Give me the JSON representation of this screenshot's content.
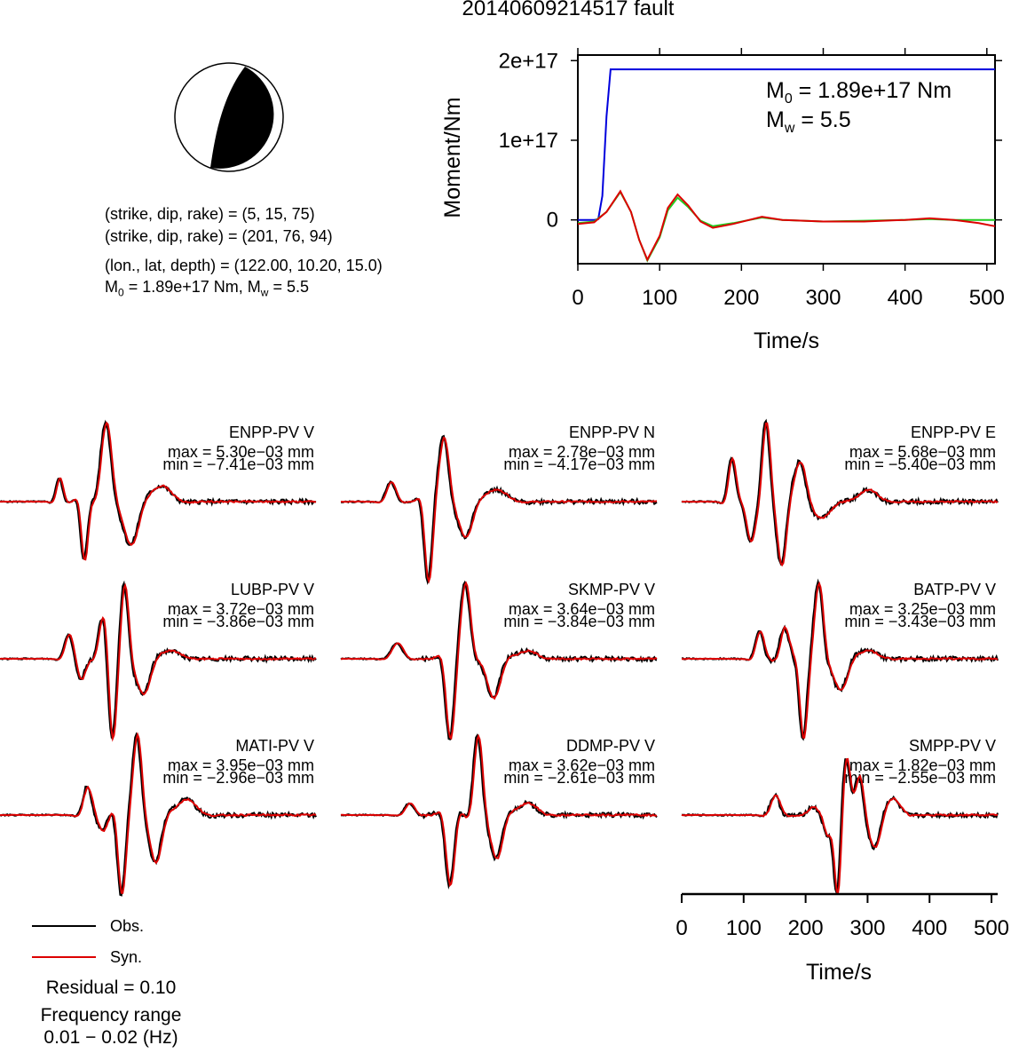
{
  "title": "20140609214517 fault",
  "beachball": {
    "strike_dip_rake_1": "(strike, dip, rake) = (5, 15, 75)",
    "strike_dip_rake_2": "(strike, dip, rake) = (201, 76, 94)",
    "location": "(lon., lat, depth) = (122.00, 10.20, 15.0)",
    "m0_text": "= 1.89e+17 Nm, M",
    "mw_text": "= 5.5"
  },
  "moment_plot": {
    "ylabel": "Moment/Nm",
    "xlabel": "Time/s",
    "m0_label": "= 1.89e+17 Nm",
    "mw_label": "= 5.5",
    "colors": {
      "cumulative": "#0000dd",
      "rate_a": "#22cc22",
      "rate_b": "#dd0000"
    }
  },
  "chart_data": [
    {
      "type": "line",
      "title": "",
      "xlabel": "Time/s",
      "ylabel": "Moment/Nm",
      "xlim": [
        0,
        510
      ],
      "ylim": [
        -55000000000000000,
        207000000000000000
      ],
      "xticks": [
        0,
        100,
        200,
        300,
        400,
        500
      ],
      "yticks": [
        0,
        100000000000000000,
        200000000000000000
      ],
      "ytick_labels": [
        "0",
        "1e+17",
        "2e+17"
      ],
      "series": [
        {
          "color": "#0000dd",
          "x": [
            0,
            20,
            25,
            30,
            35,
            40,
            510
          ],
          "y": [
            0,
            0,
            1000000000000000.0,
            30000000000000000,
            130000000000000000,
            189000000000000000,
            189000000000000000
          ]
        },
        {
          "color": "#22cc22",
          "x": [
            0,
            20,
            35,
            52,
            65,
            75,
            85,
            100,
            110,
            122,
            135,
            150,
            165,
            190,
            225,
            250,
            300,
            350,
            400,
            430,
            460,
            510
          ],
          "y": [
            -4000000000000000,
            -2000000000000000,
            10000000000000000,
            35000000000000000,
            10000000000000000,
            -25000000000000000,
            -51000000000000000,
            -22000000000000000,
            12000000000000000,
            28000000000000000,
            16000000000000000,
            -1000000000000000,
            -8000000000000000,
            -4000000000000000,
            3000000000000000,
            0,
            -2000000000000000,
            -1000000000000000,
            0,
            1000000000000000,
            0,
            0
          ]
        },
        {
          "color": "#dd0000",
          "x": [
            0,
            20,
            35,
            52,
            65,
            75,
            85,
            100,
            110,
            122,
            135,
            150,
            165,
            190,
            225,
            250,
            300,
            350,
            400,
            430,
            460,
            490,
            510
          ],
          "y": [
            -5000000000000000,
            -3000000000000000,
            10000000000000000,
            36000000000000000,
            10000000000000000,
            -25000000000000000,
            -50000000000000000,
            -20000000000000000,
            15000000000000000,
            32000000000000000,
            18000000000000000,
            -2000000000000000,
            -10000000000000000,
            -5000000000000000,
            4000000000000000,
            0,
            -2000000000000000,
            -2000000000000000,
            0,
            2000000000000000,
            0,
            -4000000000000000,
            -8000000000000000
          ]
        }
      ]
    },
    {
      "type": "line",
      "xlabel": "Time/s",
      "xlim": [
        0,
        510
      ],
      "xticks": [
        0,
        100,
        200,
        300,
        400,
        500
      ],
      "legend": {
        "placement": "bottom-left",
        "entries": [
          "Obs.",
          "Syn."
        ]
      },
      "panels": [
        {
          "station": "ENPP-PV V",
          "max": "max = 5.30e−03 mm",
          "min": "min = −7.41e−03 mm",
          "events": [
            [
              95,
              0.3,
              7
            ],
            [
              135,
              -0.75,
              7
            ],
            [
              170,
              1.0,
              11
            ],
            [
              210,
              -0.55,
              15
            ],
            [
              260,
              0.2,
              20
            ]
          ]
        },
        {
          "station": "ENPP-PV N",
          "max": "max = 2.78e−03 mm",
          "min": "min = −4.17e−03 mm",
          "events": [
            [
              80,
              0.25,
              10
            ],
            [
              140,
              -1.0,
              8
            ],
            [
              165,
              0.8,
              10
            ],
            [
              200,
              -0.45,
              14
            ],
            [
              250,
              0.15,
              22
            ]
          ]
        },
        {
          "station": "ENPP-PV E",
          "max": "max = 5.68e−03 mm",
          "min": "min = −5.40e−03 mm",
          "events": [
            [
              80,
              0.55,
              8
            ],
            [
              110,
              -0.5,
              9
            ],
            [
              135,
              1.0,
              8
            ],
            [
              160,
              -0.8,
              9
            ],
            [
              190,
              0.5,
              12
            ],
            [
              225,
              -0.2,
              18
            ],
            [
              300,
              0.15,
              20
            ]
          ]
        },
        {
          "station": "LUBP-PV V",
          "max": "max = 3.72e−03 mm",
          "min": "min = −3.86e−03 mm",
          "events": [
            [
              110,
              0.3,
              9
            ],
            [
              130,
              -0.25,
              9
            ],
            [
              165,
              0.5,
              9
            ],
            [
              180,
              -1.0,
              8
            ],
            [
              200,
              0.9,
              8
            ],
            [
              230,
              -0.45,
              14
            ],
            [
              275,
              0.1,
              20
            ]
          ]
        },
        {
          "station": "SKMP-PV V",
          "max": "max = 3.64e−03 mm",
          "min": "min = −3.84e−03 mm",
          "events": [
            [
              90,
              0.2,
              12
            ],
            [
              175,
              -1.0,
              9
            ],
            [
              200,
              0.95,
              10
            ],
            [
              245,
              -0.5,
              14
            ],
            [
              300,
              0.1,
              20
            ]
          ]
        },
        {
          "station": "BATP-PV V",
          "max": "max = 3.25e−03 mm",
          "min": "min = −3.43e−03 mm",
          "events": [
            [
              125,
              0.35,
              9
            ],
            [
              165,
              0.4,
              9
            ],
            [
              195,
              -1.0,
              8
            ],
            [
              220,
              0.95,
              9
            ],
            [
              255,
              -0.4,
              14
            ],
            [
              300,
              0.1,
              20
            ]
          ]
        },
        {
          "station": "MATI-PV V",
          "max": "max = 3.95e−03 mm",
          "min": "min = −2.96e−03 mm",
          "events": [
            [
              140,
              0.35,
              9
            ],
            [
              165,
              -0.2,
              9
            ],
            [
              195,
              -1.0,
              8
            ],
            [
              220,
              1.0,
              9
            ],
            [
              250,
              -0.6,
              12
            ],
            [
              300,
              0.2,
              20
            ]
          ]
        },
        {
          "station": "DDMP-PV V",
          "max": "max = 3.62e−03 mm",
          "min": "min = −2.61e−03 mm",
          "events": [
            [
              110,
              0.15,
              10
            ],
            [
              175,
              -0.9,
              9
            ],
            [
              220,
              1.0,
              9
            ],
            [
              250,
              -0.55,
              12
            ],
            [
              300,
              0.15,
              20
            ]
          ]
        },
        {
          "station": "SMPP-PV V",
          "max": "max = 1.82e−03 mm",
          "min": "min = −2.55e−03 mm",
          "events": [
            [
              150,
              0.25,
              10
            ],
            [
              210,
              0.1,
              10
            ],
            [
              235,
              -0.3,
              8
            ],
            [
              250,
              -1.0,
              7
            ],
            [
              265,
              0.7,
              8
            ],
            [
              285,
              0.5,
              9
            ],
            [
              310,
              -0.4,
              12
            ],
            [
              340,
              0.2,
              15
            ]
          ]
        }
      ],
      "colors": {
        "obs": "#000000",
        "syn": "#dd0000"
      }
    }
  ],
  "legend": {
    "obs_label": "Obs.",
    "syn_label": "Syn."
  },
  "footer": {
    "residual": "Residual = 0.10",
    "freq_title": "Frequency range",
    "freq_range": "0.01 − 0.02 (Hz)"
  }
}
